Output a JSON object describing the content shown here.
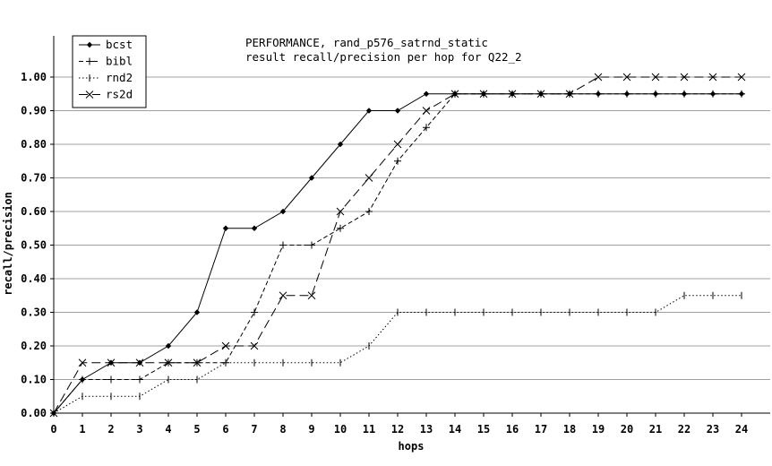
{
  "chart_data": {
    "type": "line",
    "title": "PERFORMANCE, rand_p576_satrnd_static",
    "subtitle": "result recall/precision per hop for Q22_2",
    "xlabel": "hops",
    "ylabel": "recall/precision",
    "xlim": [
      0,
      24
    ],
    "ylim": [
      0,
      1.0
    ],
    "x_ticks": [
      "0",
      "1",
      "2",
      "3",
      "4",
      "5",
      "6",
      "7",
      "8",
      "9",
      "10",
      "11",
      "12",
      "13",
      "14",
      "15",
      "16",
      "17",
      "18",
      "19",
      "20",
      "21",
      "22",
      "23",
      "24"
    ],
    "y_ticks": [
      "0.00",
      "0.10",
      "0.20",
      "0.30",
      "0.40",
      "0.50",
      "0.60",
      "0.70",
      "0.80",
      "0.90",
      "1.00"
    ],
    "grid": "horizontal",
    "legend_position": "top-left",
    "x": [
      0,
      1,
      2,
      3,
      4,
      5,
      6,
      7,
      8,
      9,
      10,
      11,
      12,
      13,
      14,
      15,
      16,
      17,
      18,
      19,
      20,
      21,
      22,
      23,
      24
    ],
    "series": [
      {
        "name": "bcst",
        "marker": "diamond",
        "dash": "solid",
        "values": [
          0,
          0.1,
          0.15,
          0.15,
          0.2,
          0.3,
          0.55,
          0.55,
          0.6,
          0.7,
          0.8,
          0.9,
          0.9,
          0.95,
          0.95,
          0.95,
          0.95,
          0.95,
          0.95,
          0.95,
          0.95,
          0.95,
          0.95,
          0.95,
          0.95
        ]
      },
      {
        "name": "bibl",
        "marker": "plus",
        "dash": "dashed",
        "values": [
          0,
          0.1,
          0.1,
          0.1,
          0.15,
          0.15,
          0.15,
          0.3,
          0.5,
          0.5,
          0.55,
          0.6,
          0.75,
          0.85,
          0.95,
          0.95,
          0.95,
          0.95,
          0.95,
          0.95,
          0.95,
          0.95,
          0.95,
          0.95,
          0.95
        ]
      },
      {
        "name": "rnd2",
        "marker": "vtick",
        "dash": "dotted",
        "values": [
          0,
          0.05,
          0.05,
          0.05,
          0.1,
          0.1,
          0.15,
          0.15,
          0.15,
          0.15,
          0.15,
          0.2,
          0.3,
          0.3,
          0.3,
          0.3,
          0.3,
          0.3,
          0.3,
          0.3,
          0.3,
          0.3,
          0.35,
          0.35,
          0.35
        ]
      },
      {
        "name": "rs2d",
        "marker": "x",
        "dash": "longdash",
        "values": [
          0,
          0.15,
          0.15,
          0.15,
          0.15,
          0.15,
          0.2,
          0.2,
          0.35,
          0.35,
          0.6,
          0.7,
          0.8,
          0.9,
          0.95,
          0.95,
          0.95,
          0.95,
          0.95,
          1.0,
          1.0,
          1.0,
          1.0,
          1.0,
          1.0
        ]
      }
    ]
  }
}
